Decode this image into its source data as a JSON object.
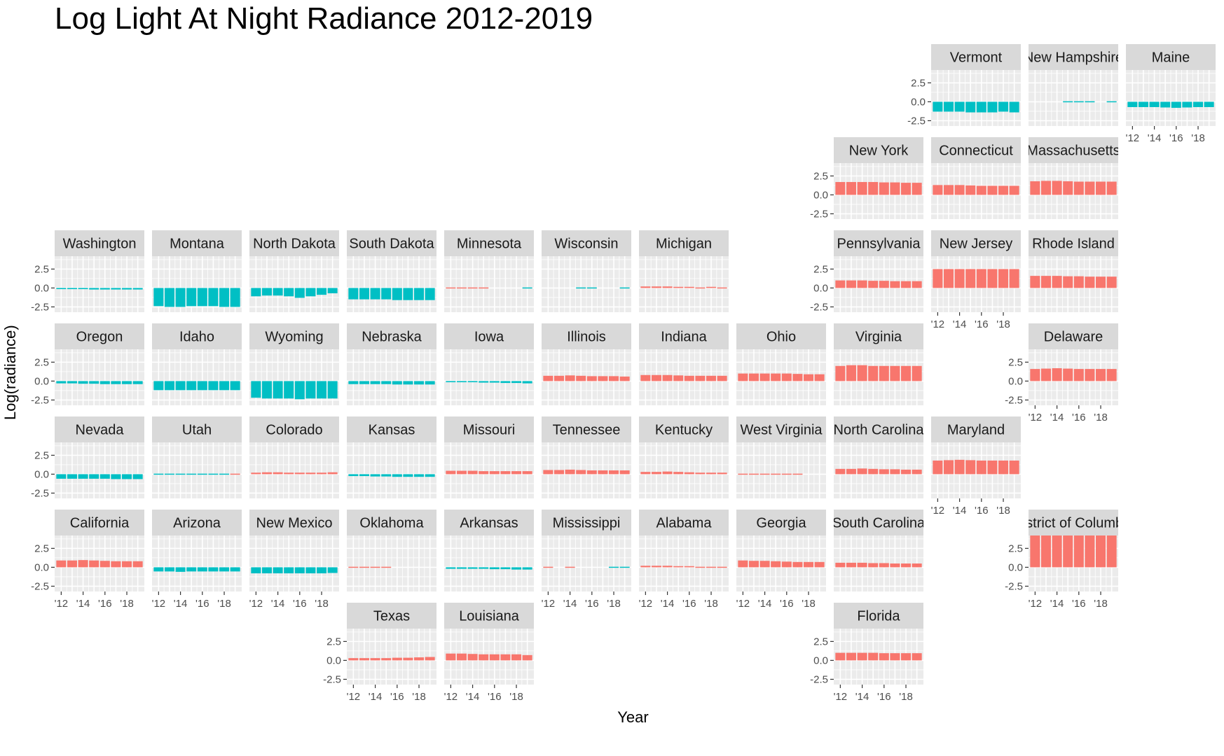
{
  "chart_data": {
    "type": "bar",
    "title": "Log Light At Night Radiance 2012-2019",
    "xlabel": "Year",
    "ylabel": "Log(radiance)",
    "x": [
      2012,
      2013,
      2014,
      2015,
      2016,
      2017,
      2018,
      2019
    ],
    "x_tick_labels": [
      "'12",
      "'14",
      "'16",
      "'18"
    ],
    "ylim": [
      -3.2,
      4.2
    ],
    "y_ticks": [
      2.5,
      0.0,
      -2.5
    ],
    "y_tick_labels": [
      "2.5",
      "0.0",
      "-2.5"
    ],
    "grid": true,
    "legend": "none",
    "colors": {
      "positive": "#F8766D",
      "negative": "#00BFC4",
      "panel_bg": "#EBEBEB",
      "strip_bg": "#D9D9D9",
      "gridline": "#FFFFFF"
    },
    "states": [
      {
        "name": "Vermont",
        "values": [
          -1.3,
          -1.3,
          -1.3,
          -1.4,
          -1.4,
          -1.4,
          -1.3,
          -1.4
        ]
      },
      {
        "name": "New Hampshire",
        "values": [
          null,
          null,
          null,
          -0.05,
          -0.05,
          -0.05,
          null,
          -0.05
        ]
      },
      {
        "name": "Maine",
        "values": [
          -0.7,
          -0.7,
          -0.7,
          -0.75,
          -0.8,
          -0.75,
          -0.7,
          -0.7
        ]
      },
      {
        "name": "New York",
        "values": [
          1.7,
          1.7,
          1.7,
          1.7,
          1.65,
          1.65,
          1.6,
          1.6
        ]
      },
      {
        "name": "Connecticut",
        "values": [
          1.3,
          1.3,
          1.3,
          1.25,
          1.2,
          1.2,
          1.2,
          1.2
        ]
      },
      {
        "name": "Massachusetts",
        "values": [
          1.8,
          1.85,
          1.85,
          1.8,
          1.75,
          1.75,
          1.75,
          1.75
        ]
      },
      {
        "name": "Washington",
        "values": [
          -0.15,
          -0.15,
          -0.15,
          -0.2,
          -0.2,
          -0.2,
          -0.2,
          -0.2
        ]
      },
      {
        "name": "Montana",
        "values": [
          -2.4,
          -2.5,
          -2.5,
          -2.4,
          -2.4,
          -2.4,
          -2.5,
          -2.5
        ]
      },
      {
        "name": "North Dakota",
        "values": [
          -1.1,
          -1.0,
          -1.0,
          -1.1,
          -1.3,
          -1.1,
          -0.9,
          -0.7
        ]
      },
      {
        "name": "South Dakota",
        "values": [
          -1.5,
          -1.5,
          -1.5,
          -1.5,
          -1.6,
          -1.6,
          -1.6,
          -1.6
        ]
      },
      {
        "name": "Minnesota",
        "values": [
          0.05,
          0.05,
          0.05,
          0.05,
          null,
          null,
          null,
          -0.05
        ]
      },
      {
        "name": "Wisconsin",
        "values": [
          null,
          null,
          null,
          -0.05,
          -0.05,
          null,
          null,
          -0.05
        ]
      },
      {
        "name": "Michigan",
        "values": [
          0.2,
          0.2,
          0.2,
          0.15,
          0.15,
          0.1,
          0.15,
          0.1
        ]
      },
      {
        "name": "Pennsylvania",
        "values": [
          1.0,
          1.0,
          1.0,
          0.95,
          0.95,
          0.9,
          0.9,
          0.9
        ]
      },
      {
        "name": "New Jersey",
        "values": [
          2.5,
          2.5,
          2.5,
          2.5,
          2.5,
          2.5,
          2.5,
          2.5
        ]
      },
      {
        "name": "Rhode Island",
        "values": [
          1.6,
          1.6,
          1.6,
          1.55,
          1.55,
          1.5,
          1.5,
          1.5
        ]
      },
      {
        "name": "Oregon",
        "values": [
          -0.3,
          -0.3,
          -0.35,
          -0.35,
          -0.4,
          -0.4,
          -0.4,
          -0.4
        ]
      },
      {
        "name": "Idaho",
        "values": [
          -1.2,
          -1.2,
          -1.2,
          -1.2,
          -1.2,
          -1.2,
          -1.2,
          -1.2
        ]
      },
      {
        "name": "Wyoming",
        "values": [
          -2.2,
          -2.3,
          -2.3,
          -2.3,
          -2.4,
          -2.3,
          -2.3,
          -2.3
        ]
      },
      {
        "name": "Nebraska",
        "values": [
          -0.4,
          -0.4,
          -0.4,
          -0.4,
          -0.45,
          -0.45,
          -0.45,
          -0.45
        ]
      },
      {
        "name": "Iowa",
        "values": [
          -0.15,
          -0.15,
          -0.15,
          -0.2,
          -0.2,
          -0.25,
          -0.25,
          -0.3
        ]
      },
      {
        "name": "Illinois",
        "values": [
          0.7,
          0.7,
          0.75,
          0.7,
          0.65,
          0.65,
          0.65,
          0.6
        ]
      },
      {
        "name": "Indiana",
        "values": [
          0.8,
          0.8,
          0.8,
          0.75,
          0.7,
          0.7,
          0.7,
          0.7
        ]
      },
      {
        "name": "Ohio",
        "values": [
          1.0,
          1.0,
          1.0,
          1.0,
          1.0,
          0.95,
          0.9,
          0.9
        ]
      },
      {
        "name": "Virginia",
        "values": [
          2.0,
          2.1,
          2.1,
          2.0,
          2.0,
          2.0,
          2.0,
          2.0
        ]
      },
      {
        "name": "Delaware",
        "values": [
          1.6,
          1.65,
          1.7,
          1.65,
          1.6,
          1.6,
          1.6,
          1.6
        ]
      },
      {
        "name": "Nevada",
        "values": [
          -0.6,
          -0.6,
          -0.6,
          -0.6,
          -0.6,
          -0.65,
          -0.65,
          -0.65
        ]
      },
      {
        "name": "Utah",
        "values": [
          -0.1,
          -0.1,
          -0.1,
          -0.1,
          -0.1,
          -0.1,
          -0.05,
          0.05
        ]
      },
      {
        "name": "Colorado",
        "values": [
          0.2,
          0.25,
          0.25,
          0.2,
          0.2,
          0.2,
          0.2,
          0.25
        ]
      },
      {
        "name": "Kansas",
        "values": [
          -0.25,
          -0.25,
          -0.3,
          -0.3,
          -0.35,
          -0.35,
          -0.35,
          -0.35
        ]
      },
      {
        "name": "Missouri",
        "values": [
          0.45,
          0.45,
          0.45,
          0.4,
          0.4,
          0.4,
          0.4,
          0.4
        ]
      },
      {
        "name": "Tennessee",
        "values": [
          0.55,
          0.55,
          0.6,
          0.55,
          0.5,
          0.5,
          0.5,
          0.5
        ]
      },
      {
        "name": "Kentucky",
        "values": [
          0.3,
          0.3,
          0.35,
          0.3,
          0.25,
          0.2,
          0.2,
          0.2
        ]
      },
      {
        "name": "West Virginia",
        "values": [
          0.05,
          0.05,
          0.1,
          0.1,
          0.05,
          0.05,
          null,
          null
        ]
      },
      {
        "name": "North Carolina",
        "values": [
          0.7,
          0.7,
          0.75,
          0.7,
          0.65,
          0.65,
          0.6,
          0.6
        ]
      },
      {
        "name": "Maryland",
        "values": [
          1.8,
          1.85,
          1.9,
          1.85,
          1.8,
          1.8,
          1.8,
          1.8
        ]
      },
      {
        "name": "California",
        "values": [
          0.9,
          0.9,
          0.95,
          0.9,
          0.85,
          0.8,
          0.8,
          0.8
        ]
      },
      {
        "name": "Arizona",
        "values": [
          -0.55,
          -0.55,
          -0.6,
          -0.55,
          -0.55,
          -0.55,
          -0.55,
          -0.55
        ]
      },
      {
        "name": "New Mexico",
        "values": [
          -0.8,
          -0.8,
          -0.8,
          -0.8,
          -0.8,
          -0.8,
          -0.8,
          -0.75
        ]
      },
      {
        "name": "Oklahoma",
        "values": [
          0.05,
          0.05,
          0.05,
          0.05,
          null,
          null,
          null,
          null
        ]
      },
      {
        "name": "Arkansas",
        "values": [
          -0.2,
          -0.2,
          -0.2,
          -0.2,
          -0.25,
          -0.25,
          -0.3,
          -0.3
        ]
      },
      {
        "name": "Mississippi",
        "values": [
          0.05,
          null,
          0.05,
          null,
          null,
          null,
          -0.05,
          -0.05
        ]
      },
      {
        "name": "Alabama",
        "values": [
          0.2,
          0.2,
          0.2,
          0.15,
          0.15,
          0.1,
          0.1,
          0.1
        ]
      },
      {
        "name": "Georgia",
        "values": [
          0.9,
          0.85,
          0.85,
          0.8,
          0.75,
          0.7,
          0.7,
          0.7
        ]
      },
      {
        "name": "South Carolina",
        "values": [
          0.6,
          0.6,
          0.6,
          0.55,
          0.55,
          0.5,
          0.5,
          0.5
        ]
      },
      {
        "name": "District of Columbia",
        "values": [
          4.5,
          4.5,
          4.5,
          4.5,
          4.5,
          4.5,
          4.5,
          4.5
        ]
      },
      {
        "name": "Texas",
        "values": [
          0.3,
          0.3,
          0.3,
          0.3,
          0.35,
          0.35,
          0.4,
          0.45
        ]
      },
      {
        "name": "Louisiana",
        "values": [
          0.9,
          0.9,
          0.85,
          0.8,
          0.8,
          0.8,
          0.8,
          0.7
        ]
      },
      {
        "name": "Florida",
        "values": [
          1.0,
          1.0,
          1.0,
          1.0,
          0.95,
          0.95,
          0.95,
          0.95
        ]
      }
    ]
  }
}
